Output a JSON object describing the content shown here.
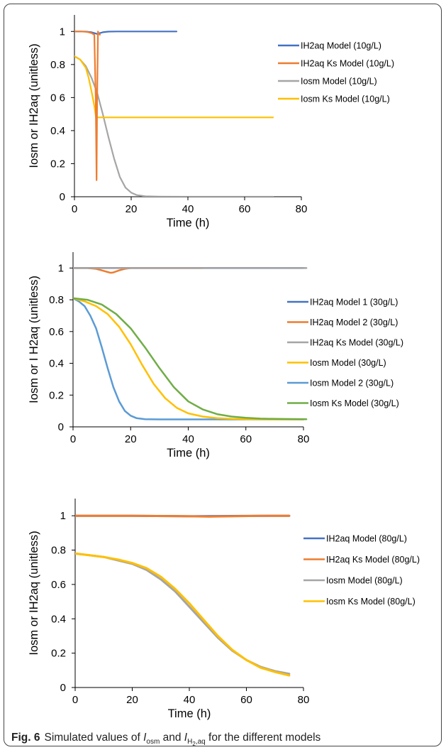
{
  "caption": {
    "label": "Fig. 6",
    "text_before": "Simulated values of",
    "sym1_main": "I",
    "sym1_sub": "osm",
    "text_mid": "and",
    "sym2_main": "I",
    "sym2_sub": "H",
    "sym2_subsub": "2",
    "sym2_sub_rest": ",aq",
    "text_after": "for the different models"
  },
  "chart_data": [
    {
      "type": "line",
      "title": "",
      "xlabel": "Time (h)",
      "ylabel": "Iosm or IH2aq (unitless)",
      "xlim": [
        0,
        80
      ],
      "ylim": [
        0,
        1.1
      ],
      "x_ticks": [
        0,
        20,
        40,
        60,
        80
      ],
      "x_tick_labels": [
        "0",
        "20",
        "40",
        "60",
        "80"
      ],
      "y_ticks": [
        0,
        0.2,
        0.4,
        0.6,
        0.8,
        1
      ],
      "y_tick_labels": [
        "0",
        "0.2",
        "0.4",
        "0 6",
        "0.8",
        "1"
      ],
      "grid": false,
      "legend_position": "right",
      "series": [
        {
          "name": "IH2aq Model (10g/L)",
          "color": "#4472C4",
          "x": [
            0,
            2,
            4,
            6,
            7,
            8,
            9,
            10,
            12,
            15,
            20,
            30,
            36
          ],
          "y": [
            1.0,
            1.0,
            0.999,
            0.995,
            0.99,
            0.985,
            0.99,
            0.995,
            0.999,
            1.0,
            1.0,
            1.0,
            1.0
          ]
        },
        {
          "name": "IH2aq Ks Model (10g/L)",
          "color": "#ED7D31",
          "x": [
            0,
            2,
            4,
            5,
            6,
            7,
            7.5,
            7.8,
            8.0,
            8.3,
            8.6,
            9
          ],
          "y": [
            1.0,
            1.0,
            0.998,
            0.995,
            0.99,
            0.98,
            0.6,
            0.1,
            0.6,
            1.0,
            0.985,
            0.98
          ]
        },
        {
          "name": "Iosm Model (10g/L)",
          "color": "#A5A5A5",
          "x": [
            0,
            2,
            4,
            6,
            8,
            10,
            12,
            14,
            16,
            18,
            20,
            22,
            25,
            30,
            40,
            50,
            60,
            70
          ],
          "y": [
            0.85,
            0.83,
            0.79,
            0.72,
            0.63,
            0.5,
            0.36,
            0.23,
            0.12,
            0.055,
            0.025,
            0.01,
            0.003,
            0.001,
            0.0,
            0.0,
            0.0,
            0.0
          ]
        },
        {
          "name": "Iosm Ks Model (10g/L)",
          "color": "#FFC000",
          "x": [
            0,
            2,
            4,
            5,
            6,
            7,
            7.6,
            10,
            20,
            30,
            40,
            50,
            60,
            70
          ],
          "y": [
            0.85,
            0.83,
            0.78,
            0.72,
            0.64,
            0.55,
            0.48,
            0.48,
            0.48,
            0.48,
            0.48,
            0.48,
            0.48,
            0.48
          ]
        }
      ]
    },
    {
      "type": "line",
      "title": "",
      "xlabel": "Time (h)",
      "ylabel": "Iosm or I H2aq (unitless)",
      "xlim": [
        0,
        80
      ],
      "ylim": [
        0,
        1.1
      ],
      "x_ticks": [
        0,
        20,
        40,
        60,
        80
      ],
      "x_tick_labels": [
        "0",
        "20",
        "40",
        "60",
        "80"
      ],
      "y_ticks": [
        0,
        0.2,
        0.4,
        0.6,
        0.8,
        1
      ],
      "y_tick_labels": [
        "0",
        "0.2",
        "0.4",
        "0.6",
        "0.8",
        "1"
      ],
      "grid": false,
      "legend_position": "right",
      "series": [
        {
          "name": "IH2aq Model 1 (30g/L)",
          "color": "#4472C4",
          "x": [
            0,
            20,
            40,
            60,
            80
          ],
          "y": [
            1.0,
            1.0,
            1.0,
            1.0,
            1.0
          ]
        },
        {
          "name": "IH2aq Model 2 (30g/L)",
          "color": "#ED7D31",
          "x": [
            0,
            5,
            8,
            10,
            12,
            13,
            14,
            16,
            18,
            20,
            30,
            45
          ],
          "y": [
            1.0,
            1.0,
            0.995,
            0.985,
            0.975,
            0.97,
            0.972,
            0.985,
            0.995,
            1.0,
            1.0,
            1.0
          ]
        },
        {
          "name": "IH2aq Ks Model (30g/L)",
          "color": "#A5A5A5",
          "x": [
            0,
            20,
            40,
            60,
            81
          ],
          "y": [
            1.0,
            1.0,
            1.0,
            1.0,
            1.0
          ]
        },
        {
          "name": "Iosm Model (30g/L)",
          "color": "#FFC000",
          "x": [
            0,
            4,
            8,
            12,
            16,
            20,
            24,
            28,
            32,
            36,
            40,
            45,
            50,
            55,
            60,
            70,
            80
          ],
          "y": [
            0.81,
            0.79,
            0.76,
            0.71,
            0.63,
            0.52,
            0.39,
            0.27,
            0.18,
            0.12,
            0.085,
            0.065,
            0.055,
            0.05,
            0.048,
            0.047,
            0.047
          ]
        },
        {
          "name": "Iosm Model 2 (30g/L)",
          "color": "#5B9BD5",
          "x": [
            0,
            2,
            4,
            6,
            8,
            10,
            12,
            14,
            16,
            18,
            20,
            22,
            25,
            30,
            40,
            60,
            80
          ],
          "y": [
            0.81,
            0.79,
            0.76,
            0.7,
            0.62,
            0.5,
            0.37,
            0.25,
            0.16,
            0.1,
            0.07,
            0.055,
            0.048,
            0.047,
            0.047,
            0.047,
            0.047
          ]
        },
        {
          "name": "Iosm Ks Model (30g/L)",
          "color": "#70AD47",
          "x": [
            0,
            5,
            10,
            15,
            20,
            25,
            30,
            35,
            40,
            45,
            50,
            55,
            60,
            65,
            70,
            75,
            81
          ],
          "y": [
            0.81,
            0.8,
            0.77,
            0.71,
            0.62,
            0.5,
            0.37,
            0.25,
            0.16,
            0.11,
            0.08,
            0.065,
            0.057,
            0.052,
            0.05,
            0.049,
            0.048
          ]
        }
      ]
    },
    {
      "type": "line",
      "title": "",
      "xlabel": "Time (h)",
      "ylabel": "Iosm or IH2aq (unitless)",
      "xlim": [
        0,
        80
      ],
      "ylim": [
        0,
        1.1
      ],
      "x_ticks": [
        0,
        20,
        40,
        60,
        80
      ],
      "x_tick_labels": [
        "0",
        "20",
        "40",
        "60",
        "80"
      ],
      "y_ticks": [
        0,
        0.2,
        0.4,
        0.6,
        0.8,
        1
      ],
      "y_tick_labels": [
        "0",
        "0.2",
        "0.4",
        "0.6",
        "0.8",
        "1"
      ],
      "grid": false,
      "legend_position": "right",
      "series": [
        {
          "name": "IH2aq Model (80g/L)",
          "color": "#4472C4",
          "x": [
            0,
            20,
            40,
            60,
            75
          ],
          "y": [
            1.0,
            1.0,
            0.997,
            0.999,
            1.0
          ]
        },
        {
          "name": "IH2aq Ks Model (80g/L)",
          "color": "#ED7D31",
          "x": [
            0,
            20,
            40,
            47,
            55,
            65,
            75
          ],
          "y": [
            1.0,
            1.0,
            0.997,
            0.995,
            0.997,
            1.0,
            1.0
          ]
        },
        {
          "name": "Iosm Model (80g/L)",
          "color": "#A5A5A5",
          "x": [
            0,
            5,
            10,
            15,
            20,
            25,
            30,
            35,
            40,
            45,
            50,
            55,
            60,
            65,
            70,
            75
          ],
          "y": [
            0.78,
            0.77,
            0.76,
            0.74,
            0.72,
            0.685,
            0.63,
            0.56,
            0.47,
            0.38,
            0.29,
            0.215,
            0.16,
            0.12,
            0.095,
            0.08
          ]
        },
        {
          "name": "Iosm Ks Model (80g/L)",
          "color": "#FFC000",
          "x": [
            0,
            5,
            10,
            15,
            20,
            25,
            30,
            35,
            40,
            45,
            50,
            55,
            60,
            65,
            70,
            75
          ],
          "y": [
            0.78,
            0.77,
            0.76,
            0.745,
            0.725,
            0.695,
            0.645,
            0.575,
            0.49,
            0.395,
            0.3,
            0.22,
            0.16,
            0.115,
            0.09,
            0.07
          ]
        }
      ]
    }
  ]
}
